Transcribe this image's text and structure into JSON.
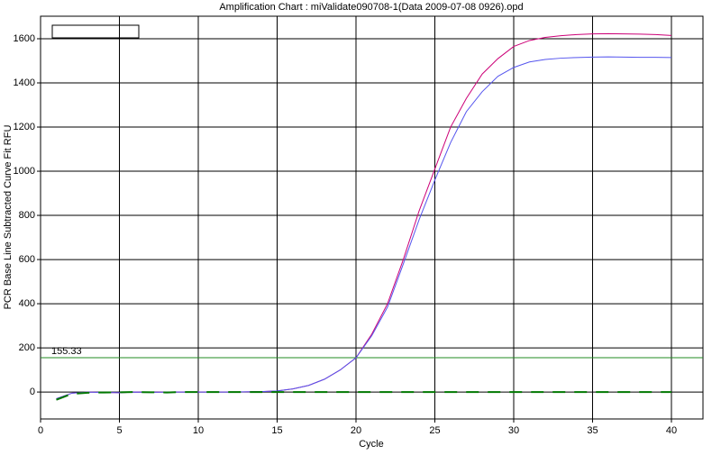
{
  "chart_data": {
    "type": "line",
    "title": "Amplification Chart : miValidate090708-1(Data 2009-07-08 0926).opd",
    "x_label": "Cycle",
    "y_label": "PCR Base Line Subtracted Curve Fit RFU",
    "x": [
      1,
      2,
      3,
      4,
      5,
      6,
      7,
      8,
      9,
      10,
      11,
      12,
      13,
      14,
      15,
      16,
      17,
      18,
      19,
      20,
      21,
      22,
      23,
      24,
      25,
      26,
      27,
      28,
      29,
      30,
      31,
      32,
      33,
      34,
      35,
      36,
      37,
      38,
      39,
      40
    ],
    "series": [
      {
        "color": "#cc0077",
        "dash": false,
        "values": [
          -30,
          -5,
          0,
          -2,
          -3,
          0,
          -1,
          0,
          0,
          0,
          0,
          0,
          1,
          2,
          5,
          14,
          30,
          58,
          100,
          155,
          262,
          400,
          600,
          820,
          1010,
          1200,
          1330,
          1440,
          1510,
          1565,
          1592,
          1606,
          1614,
          1619,
          1622,
          1623,
          1622,
          1621,
          1619,
          1615
        ]
      },
      {
        "color": "#5555ee",
        "dash": false,
        "values": [
          -30,
          -5,
          0,
          -2,
          -3,
          0,
          -1,
          0,
          0,
          0,
          0,
          0,
          1,
          2,
          5,
          14,
          30,
          58,
          100,
          155,
          255,
          385,
          580,
          780,
          960,
          1130,
          1270,
          1360,
          1430,
          1470,
          1495,
          1506,
          1512,
          1515,
          1517,
          1518,
          1517,
          1516,
          1516,
          1515
        ]
      },
      {
        "color": "#007700",
        "dash": true,
        "values": [
          -35,
          -8,
          -3,
          -2,
          -1,
          0,
          -1,
          -2,
          0,
          0,
          0,
          0,
          0,
          0,
          0,
          0,
          0,
          0,
          0,
          0,
          0,
          0,
          0,
          0,
          0,
          0,
          0,
          0,
          0,
          0,
          0,
          0,
          0,
          0,
          0,
          0,
          0,
          0,
          0,
          0
        ]
      }
    ],
    "threshold": 155.33,
    "threshold_color": "#228b22",
    "xlim": [
      0,
      42
    ],
    "ylim": [
      -122,
      1702
    ],
    "xticks": [
      0,
      5,
      10,
      15,
      20,
      25,
      30,
      35,
      40
    ],
    "yticks": [
      0,
      200,
      400,
      600,
      800,
      1000,
      1200,
      1400,
      1600
    ],
    "grid": true
  }
}
